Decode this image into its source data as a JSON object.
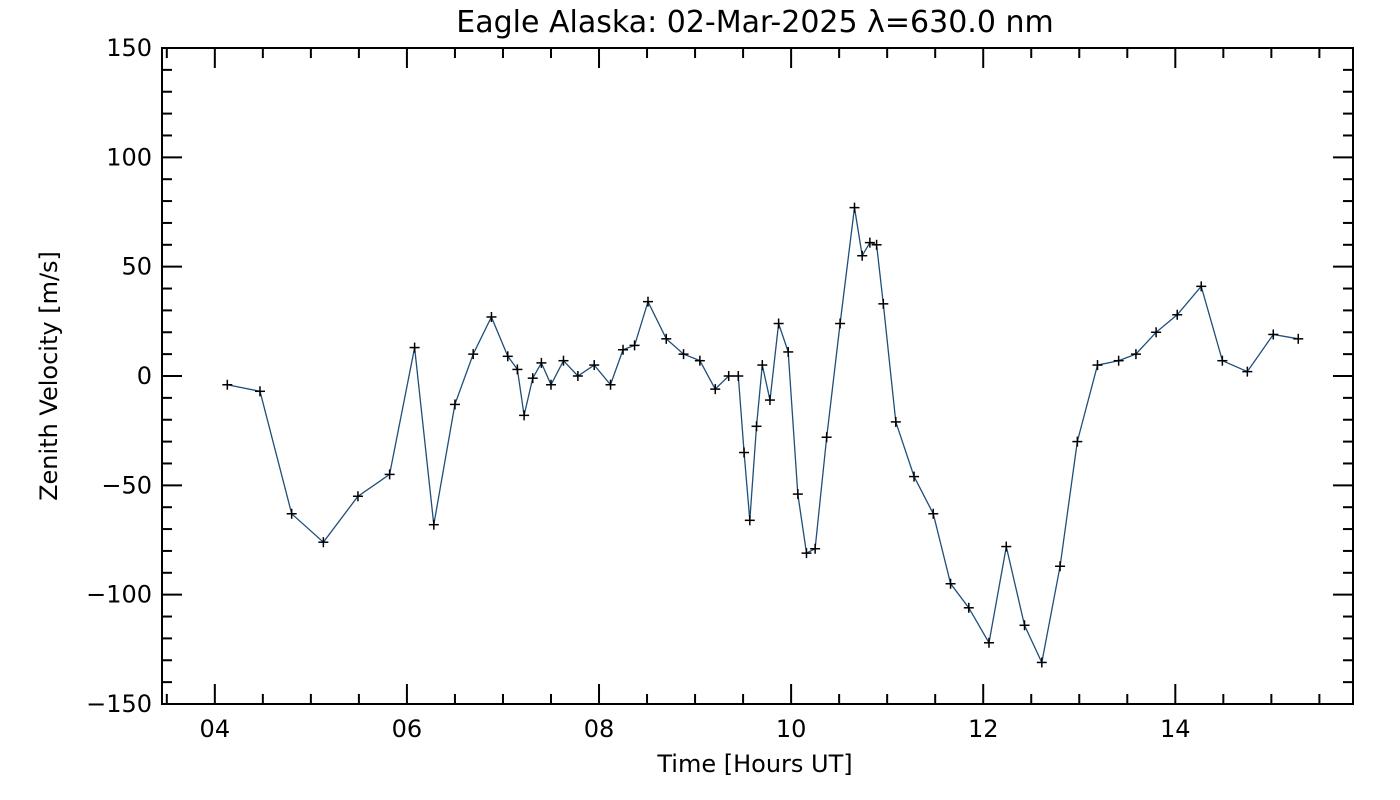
{
  "chart_data": {
    "type": "line",
    "title": "Eagle Alaska: 02-Mar-2025 λ=630.0 nm",
    "xlabel": "Time [Hours UT]",
    "ylabel": "Zenith Velocity [m/s]",
    "xlim": [
      3.45,
      15.85
    ],
    "ylim": [
      -150,
      150
    ],
    "x_ticks": [
      4,
      6,
      8,
      10,
      12,
      14
    ],
    "x_tick_labels": [
      "04",
      "06",
      "08",
      "10",
      "12",
      "14"
    ],
    "y_ticks": [
      -150,
      -100,
      -50,
      0,
      50,
      100,
      150
    ],
    "y_tick_labels": [
      "−150",
      "−100",
      "−50",
      "0",
      "50",
      "100",
      "150"
    ],
    "grid": false,
    "legend": "none",
    "line_color": "#1f4e79",
    "marker": "+",
    "series": [
      {
        "x": [
          4.13,
          4.47,
          4.8,
          5.13,
          5.49,
          5.82,
          6.08,
          6.28,
          6.5,
          6.69,
          6.88,
          7.05,
          7.15,
          7.22,
          7.31,
          7.4,
          7.5,
          7.63,
          7.78,
          7.95,
          8.12,
          8.25,
          8.37,
          8.51,
          8.7,
          8.88,
          9.05,
          9.21,
          9.35,
          9.45,
          9.51,
          9.57,
          9.64,
          9.7,
          9.78,
          9.87,
          9.97,
          10.07,
          10.16,
          10.25,
          10.37,
          10.51,
          10.66,
          10.74,
          10.82,
          10.89,
          10.96,
          11.09,
          11.28,
          11.48,
          11.66,
          11.85,
          12.06,
          12.24,
          12.43,
          12.61,
          12.8,
          12.98,
          13.19,
          13.41,
          13.59,
          13.8,
          14.02,
          14.27,
          14.49,
          14.75,
          15.02,
          15.28
        ],
        "y": [
          -4,
          -7,
          -63,
          -76,
          -55,
          -45,
          13,
          -68,
          -13,
          10,
          27,
          9,
          3,
          -18,
          -1,
          6,
          -4,
          7,
          0,
          5,
          -4,
          12,
          14,
          34,
          17,
          10,
          7,
          -6,
          0,
          0,
          -35,
          -66,
          -23,
          5,
          -11,
          24,
          11,
          -54,
          -81,
          -79,
          -28,
          24,
          77,
          55,
          61,
          60,
          33,
          -21,
          -46,
          -63,
          -95,
          -106,
          -122,
          -78,
          -114,
          -131,
          -87,
          -30,
          5,
          7,
          10,
          20,
          28,
          41,
          7,
          2,
          19,
          17
        ]
      }
    ]
  }
}
